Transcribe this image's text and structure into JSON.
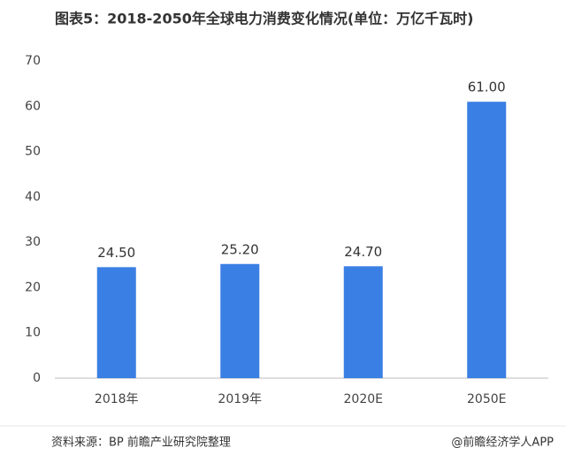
{
  "chart_data": {
    "type": "bar",
    "title": "图表5：2018-2050年全球电力消费变化情况(单位：万亿千瓦时)",
    "categories": [
      "2018年",
      "2019年",
      "2020E",
      "2050E"
    ],
    "values": [
      24.5,
      25.2,
      24.7,
      61.0
    ],
    "value_labels": [
      "24.50",
      "25.20",
      "24.70",
      "61.00"
    ],
    "color": "#3a7fe3",
    "ylim": [
      0,
      70
    ],
    "yticks": [
      0,
      10,
      20,
      30,
      40,
      50,
      60,
      70
    ],
    "grid": false,
    "source": "资料来源：BP 前瞻产业研究院整理",
    "credit": "@前瞻经济学人APP"
  }
}
